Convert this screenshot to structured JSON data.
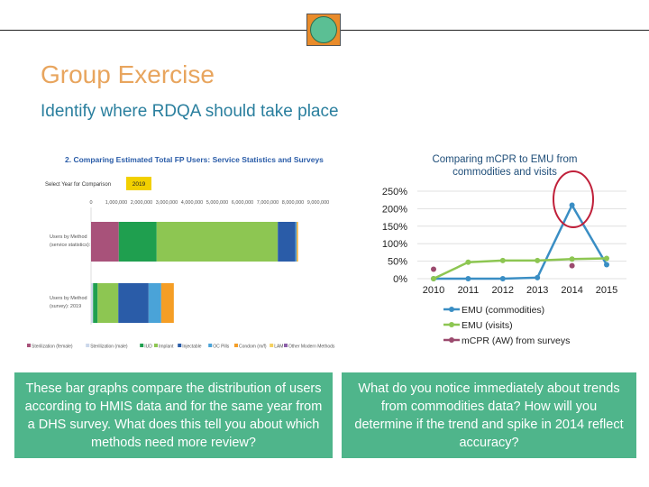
{
  "slide": {
    "title": "Group Exercise",
    "subtitle": "Identify where RDQA should take place",
    "left_callout": "These bar graphs compare the distribution of users according to HMIS data and for the same year from a DHS survey. What does this tell you about which methods need more review?",
    "right_callout": "What do you notice immediately about trends from commodities data? How will you determine if the trend and spike in 2014 reflect accuracy?"
  },
  "chart_data": [
    {
      "type": "bar",
      "orientation": "horizontal-stacked",
      "title": "2. Comparing Estimated Total FP Users: Service Statistics and Surveys",
      "select_label": "Select Year for Comparison",
      "selected_year": "2019",
      "x_ticks": [
        "0",
        "1,000,000",
        "2,000,000",
        "3,000,000",
        "4,000,000",
        "5,000,000",
        "6,000,000",
        "7,000,000",
        "8,000,000",
        "9,000,000"
      ],
      "xlim": [
        0,
        9000000
      ],
      "categories": [
        "Users by Method (service statistics): 2019",
        "Users by Method (survey): 2019"
      ],
      "series": [
        {
          "name": "Sterilization (female)",
          "color": "#a8527a",
          "values": [
            1100000,
            0
          ]
        },
        {
          "name": "Sterilization (male)",
          "color": "#cbd7ea",
          "values": [
            0,
            80000
          ]
        },
        {
          "name": "IUD",
          "color": "#1f9f4f",
          "values": [
            1500000,
            180000
          ]
        },
        {
          "name": "Implant",
          "color": "#8dc652",
          "values": [
            4800000,
            820000
          ]
        },
        {
          "name": "Injectable",
          "color": "#2a5ca8",
          "values": [
            700000,
            1200000
          ]
        },
        {
          "name": "OC Pills",
          "color": "#4aa3d8",
          "values": [
            50000,
            500000
          ]
        },
        {
          "name": "Condom (m/f)",
          "color": "#f59e26",
          "values": [
            40000,
            500000
          ]
        },
        {
          "name": "LAM",
          "color": "#f5d05e",
          "values": [
            20000,
            0
          ]
        },
        {
          "name": "Other Modern Methods",
          "color": "#8b5fa8",
          "values": [
            0,
            0
          ]
        }
      ]
    },
    {
      "type": "line",
      "title": "Comparing mCPR to EMU from commodities and visits",
      "x": [
        "2010",
        "2011",
        "2012",
        "2013",
        "2014",
        "2015"
      ],
      "y_ticks": [
        "250%",
        "200%",
        "150%",
        "100%",
        "50%",
        "0%"
      ],
      "ylim": [
        0,
        250
      ],
      "series": [
        {
          "name": "EMU (commodities)",
          "color": "#3a8ec4",
          "values": [
            0,
            0,
            0,
            3,
            210,
            40
          ]
        },
        {
          "name": "EMU (visits)",
          "color": "#8dc652",
          "values": [
            0,
            47,
            52,
            52,
            56,
            58
          ]
        },
        {
          "name": "mCPR (AW) from surveys",
          "color": "#9b4a6e",
          "values": [
            27,
            null,
            null,
            null,
            37,
            null
          ]
        }
      ],
      "annotation": "circle around 2014 spike"
    }
  ]
}
